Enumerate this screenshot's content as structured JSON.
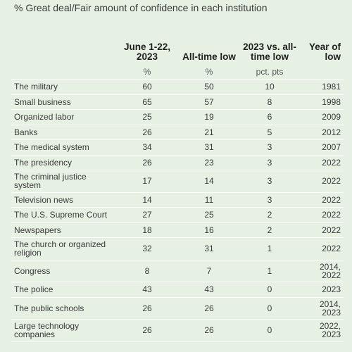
{
  "subtitle": "% Great deal/Fair amount of confidence in each institution",
  "chart_data": {
    "type": "table",
    "columns": [
      "",
      "June 1-22, 2023",
      "All-time low",
      "2023 vs. all-time low",
      "Year of low"
    ],
    "units": [
      "",
      "%",
      "%",
      "pct. pts",
      ""
    ],
    "rows": [
      {
        "institution": "The military",
        "current": "60",
        "low": "50",
        "diff": "10",
        "year": "1981"
      },
      {
        "institution": "Small business",
        "current": "65",
        "low": "57",
        "diff": "8",
        "year": "1998"
      },
      {
        "institution": "Organized labor",
        "current": "25",
        "low": "19",
        "diff": "6",
        "year": "2009"
      },
      {
        "institution": "Banks",
        "current": "26",
        "low": "21",
        "diff": "5",
        "year": "2012"
      },
      {
        "institution": "The medical system",
        "current": "34",
        "low": "31",
        "diff": "3",
        "year": "2007"
      },
      {
        "institution": "The presidency",
        "current": "26",
        "low": "23",
        "diff": "3",
        "year": "2022"
      },
      {
        "institution": "The criminal justice system",
        "current": "17",
        "low": "14",
        "diff": "3",
        "year": "2022"
      },
      {
        "institution": "Television news",
        "current": "14",
        "low": "11",
        "diff": "3",
        "year": "2022"
      },
      {
        "institution": "The U.S. Supreme Court",
        "current": "27",
        "low": "25",
        "diff": "2",
        "year": "2022"
      },
      {
        "institution": "Newspapers",
        "current": "18",
        "low": "16",
        "diff": "2",
        "year": "2022"
      },
      {
        "institution": "The church or organized religion",
        "current": "32",
        "low": "31",
        "diff": "1",
        "year": "2022"
      },
      {
        "institution": "Congress",
        "current": "8",
        "low": "7",
        "diff": "1",
        "year": "2014, 2022"
      },
      {
        "institution": "The police",
        "current": "43",
        "low": "43",
        "diff": "0",
        "year": "2023"
      },
      {
        "institution": "The public schools",
        "current": "26",
        "low": "26",
        "diff": "0",
        "year": "2014, 2023"
      },
      {
        "institution": "Large technology companies",
        "current": "26",
        "low": "26",
        "diff": "0",
        "year": "2022, 2023"
      }
    ]
  }
}
